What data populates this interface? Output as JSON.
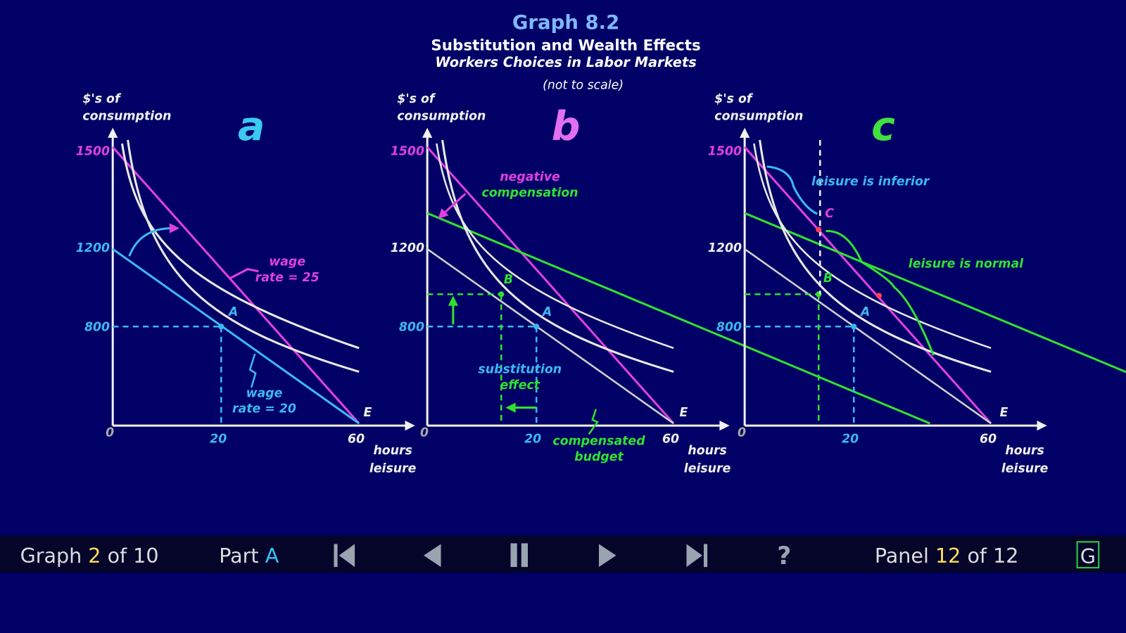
{
  "header": {
    "title": "Graph 8.2",
    "subtitle": "Substitution and Wealth Effects",
    "subtitle2": "Workers Choices in Labor Markets",
    "note": "(not to scale)"
  },
  "panels": [
    {
      "letter": "a",
      "y_axis_label": [
        "$'s of",
        "consumption"
      ],
      "x_axis_label": [
        "hours",
        "leisure"
      ],
      "y_ticks": [
        "1500",
        "1200",
        "800"
      ],
      "x_ticks": [
        "0",
        "20",
        "60"
      ],
      "points": [
        "A",
        "E"
      ],
      "annotations": [
        [
          "wage",
          "rate = 25"
        ],
        [
          "wage",
          "rate = 20"
        ]
      ]
    },
    {
      "letter": "b",
      "y_axis_label": [
        "$'s of",
        "consumption"
      ],
      "x_axis_label": [
        "hours",
        "leisure"
      ],
      "y_ticks": [
        "1500",
        "1200",
        "800"
      ],
      "x_ticks": [
        "0",
        "20",
        "60"
      ],
      "points": [
        "A",
        "B",
        "E"
      ],
      "annotations": [
        [
          "negative",
          "compensation"
        ],
        [
          "substitution",
          "effect"
        ],
        [
          "compensated",
          "budget"
        ]
      ]
    },
    {
      "letter": "c",
      "y_axis_label": [
        "$'s of",
        "consumption"
      ],
      "x_axis_label": [
        "hours",
        "leisure"
      ],
      "y_ticks": [
        "1500",
        "1200",
        "800"
      ],
      "x_ticks": [
        "0",
        "20",
        "60"
      ],
      "points": [
        "A",
        "B",
        "C",
        "E"
      ],
      "annotations": [
        [
          "leisure is inferior"
        ],
        [
          "leisure is normal"
        ]
      ]
    }
  ],
  "nav": {
    "graph_label": "Graph",
    "graph_number": "2",
    "graph_total": "of 10",
    "part_label": "Part",
    "part": "A",
    "help": "?",
    "panel_label": "Panel",
    "panel_number": "12",
    "panel_total": "of 12",
    "glossary": "G"
  }
}
